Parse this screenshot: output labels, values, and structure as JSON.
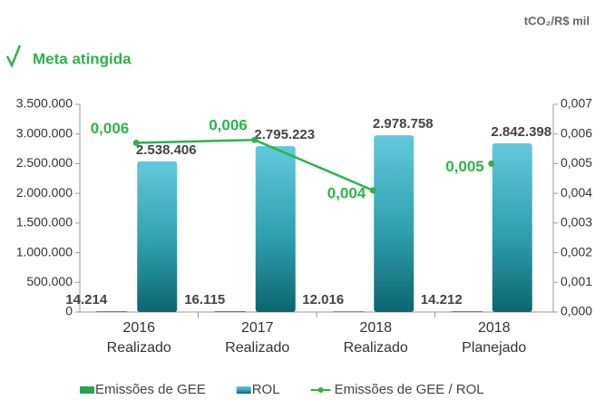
{
  "chart_data": {
    "type": "bar",
    "unit": "tCO₂/R$ mil",
    "title": "Meta atingida",
    "categories": [
      [
        "2016",
        "Realizado"
      ],
      [
        "2017",
        "Realizado"
      ],
      [
        "2018",
        "Realizado"
      ],
      [
        "2018",
        "Planejado"
      ]
    ],
    "series": [
      {
        "name": "Emissões de GEE",
        "color": "#1fa54d",
        "values": [
          14214,
          16115,
          12016,
          14212
        ],
        "value_labels": [
          "14.214",
          "16.115",
          "12.016",
          "14.212"
        ]
      },
      {
        "name": "ROL",
        "color": "#3aaebf",
        "values": [
          2538406,
          2795223,
          2978758,
          2842398
        ],
        "value_labels": [
          "2.538.406",
          "2.795.223",
          "2.978.758",
          "2.842.398"
        ]
      },
      {
        "name": "Emissões de GEE / ROL",
        "type": "line",
        "axis": "y2",
        "color": "#2db34a",
        "values": [
          0.0057,
          0.0058,
          0.0041,
          0.005
        ],
        "value_labels": [
          "0,006",
          "0,006",
          "0,004",
          "0,005"
        ]
      }
    ],
    "ylim": [
      0,
      3500000
    ],
    "yticks": [
      0,
      {
        "value": 500000,
        "label": "500.000"
      },
      {
        "value": 1000000,
        "label": "1.000.000"
      },
      {
        "value": 1500000,
        "label": "1.500.000"
      },
      {
        "value": 2000000,
        "label": "2.000.000"
      },
      {
        "value": 2500000,
        "label": "2.500.000"
      },
      {
        "value": 3000000,
        "label": "3.000.000"
      },
      {
        "value": 3500000,
        "label": "3.500.000"
      }
    ],
    "y2lim": [
      0,
      0.007
    ],
    "y2ticks": [
      {
        "value": 0,
        "label": "0,000"
      },
      {
        "value": 0.001,
        "label": "0,001"
      },
      {
        "value": 0.002,
        "label": "0,002"
      },
      {
        "value": 0.003,
        "label": "0,003"
      },
      {
        "value": 0.004,
        "label": "0,004"
      },
      {
        "value": 0.005,
        "label": "0,005"
      },
      {
        "value": 0.006,
        "label": "0,006"
      },
      {
        "value": 0.007,
        "label": "0,007"
      }
    ],
    "legend": "bottom"
  }
}
